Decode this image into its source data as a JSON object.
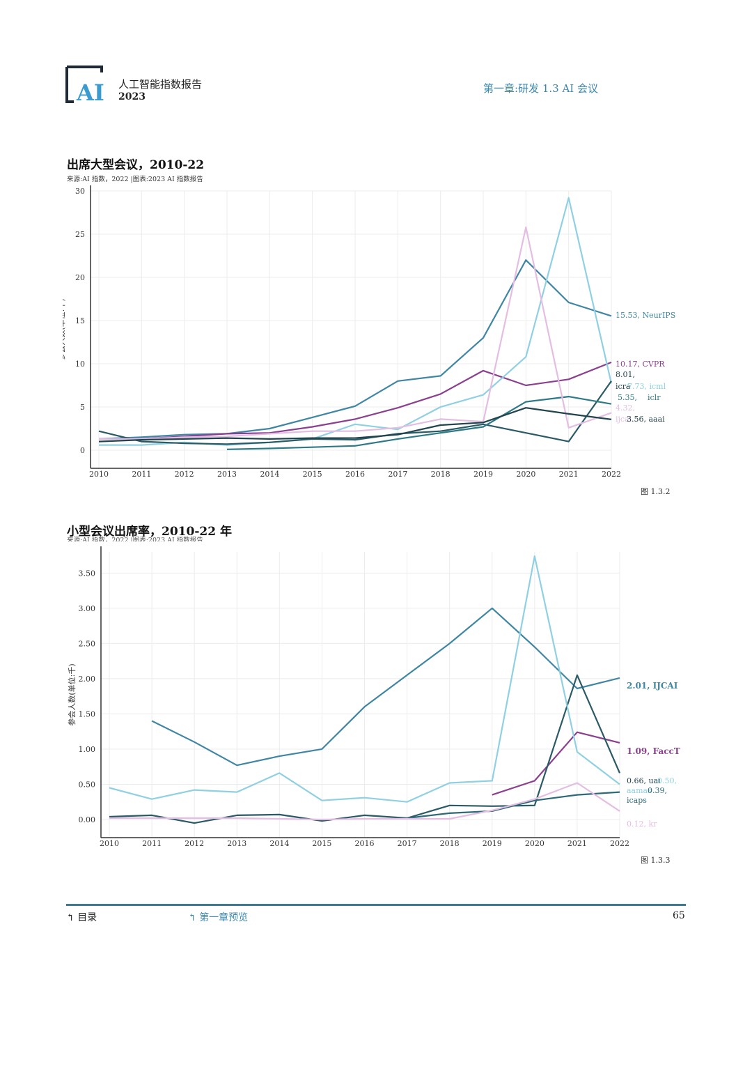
{
  "header": {
    "logo_text": "AI",
    "report_title": "人工智能指数报告",
    "report_year": "2023",
    "chapter": "第一章:研发 1.3 AI 会议"
  },
  "colors": {
    "accent": "#3a86b0",
    "footer_line": "#3b7a94",
    "logo": "#1e2a36",
    "logo_accent": "#3a9bd0"
  },
  "chart_data": [
    {
      "type": "line",
      "title": "出席大型会议，2010-22",
      "source": "来源:AI 指数，2022 |图表:2023 AI 指数报告",
      "ylabel": "参会人数(单位:千)",
      "xlabel": "",
      "x": [
        "2010",
        "2011",
        "2012",
        "2013",
        "2014",
        "2015",
        "2016",
        "2017",
        "2018",
        "2019",
        "2020",
        "2021",
        "2022"
      ],
      "yticks": [
        "0",
        "5",
        "10",
        "15",
        "20",
        "25",
        "30"
      ],
      "ylim": [
        0,
        30
      ],
      "grid": true,
      "figure_label": "图 1.3.2",
      "series": [
        {
          "name": "NeurIPS",
          "label": "15.53, NeurIPS",
          "color": "#3e86a3",
          "width": 2.2,
          "values": [
            1.3,
            1.5,
            1.8,
            1.9,
            2.5,
            3.8,
            5.1,
            8.0,
            8.6,
            13.0,
            22.0,
            17.1,
            15.53
          ]
        },
        {
          "name": "CVPR",
          "label": "10.17, CVPR",
          "color": "#8b3f8f",
          "width": 2.2,
          "values": [
            1.3,
            1.3,
            1.6,
            1.9,
            2.0,
            2.7,
            3.6,
            4.9,
            6.5,
            9.2,
            7.5,
            8.2,
            10.17
          ]
        },
        {
          "name": "icml",
          "label": "7.73, icml",
          "color": "#8fd0e2",
          "width": 2.2,
          "values": [
            0.6,
            0.6,
            0.9,
            0.6,
            0.9,
            1.3,
            3.0,
            2.4,
            5.0,
            6.4,
            10.8,
            29.2,
            7.73
          ]
        },
        {
          "name": "icra",
          "label": "8.01, icra",
          "color": "#2a5a66",
          "width": 2.2,
          "values": [
            2.2,
            1.0,
            0.8,
            0.7,
            0.9,
            1.3,
            1.2,
            1.9,
            2.2,
            3.0,
            2.0,
            1.0,
            8.01
          ]
        },
        {
          "name": "iclr",
          "label": "5.35, iclr",
          "color": "#2d7a86",
          "width": 2.2,
          "values": [
            null,
            null,
            null,
            0.1,
            0.2,
            0.35,
            0.5,
            1.3,
            2.0,
            2.7,
            5.6,
            6.2,
            5.35
          ]
        },
        {
          "name": "ijcai",
          "label": "4.32, ijcai",
          "color": "#e4bde2",
          "width": 2.2,
          "values": [
            1.3,
            1.3,
            1.5,
            1.6,
            1.9,
            2.2,
            2.2,
            2.6,
            3.6,
            3.3,
            25.8,
            2.6,
            4.32
          ]
        },
        {
          "name": "aaai",
          "label": "3.56, aaai",
          "color": "#22444f",
          "width": 2.2,
          "values": [
            1.0,
            1.2,
            1.3,
            1.4,
            1.3,
            1.4,
            1.4,
            1.8,
            2.9,
            3.2,
            4.9,
            4.2,
            3.56
          ]
        }
      ],
      "end_labels": {
        "neurips": "15.53, NeurIPS",
        "cvpr": "10.17, CVPR",
        "icra_a": "8.01,",
        "icra_b": "icra",
        "icml": "7.73, icml",
        "iclr_a": "5.35,",
        "iclr_b": "iclr",
        "ijcai_a": "4.32,",
        "ijcai_b": "ijcai",
        "aaai": "3.56, aaai"
      }
    },
    {
      "type": "line",
      "title": "小型会议出席率，2010-22 年",
      "source": "来源:AI 指数，2022 |图表:2023 AI 指数报告",
      "ylabel": "参会人数(单位:千)",
      "xlabel": "",
      "x": [
        "2010",
        "2011",
        "2012",
        "2013",
        "2014",
        "2015",
        "2016",
        "2017",
        "2018",
        "2019",
        "2020",
        "2021",
        "2022"
      ],
      "yticks": [
        "0.00",
        "0.50",
        "1.00",
        "1.50",
        "2.00",
        "2.50",
        "3.00",
        "3.50"
      ],
      "ylim": [
        0,
        3.8
      ],
      "grid": true,
      "figure_label": "图 1.3.3",
      "series": [
        {
          "name": "IJCAI",
          "label": "2.01, IJCAI",
          "color": "#3e86a3",
          "width": 2.2,
          "values": [
            null,
            1.4,
            1.1,
            0.77,
            0.9,
            1.0,
            1.6,
            2.05,
            2.5,
            3.0,
            2.45,
            1.86,
            2.01
          ]
        },
        {
          "name": "FaccT",
          "label": "1.09, FaccT",
          "color": "#8b3f8f",
          "width": 2.2,
          "values": [
            null,
            null,
            null,
            null,
            null,
            null,
            null,
            null,
            null,
            0.35,
            0.55,
            1.24,
            1.09
          ]
        },
        {
          "name": "uai",
          "label": "0.66, uai",
          "color": "#2a5a66",
          "width": 2.2,
          "values": [
            0.04,
            0.06,
            -0.05,
            0.06,
            0.07,
            -0.02,
            0.06,
            0.02,
            0.2,
            0.19,
            0.2,
            2.05,
            0.66
          ]
        },
        {
          "name": "aamas",
          "label": "0.50, aamas",
          "color": "#8fd0e2",
          "width": 2.2,
          "values": [
            0.45,
            0.29,
            0.42,
            0.39,
            0.66,
            0.27,
            0.31,
            0.25,
            0.52,
            0.55,
            3.74,
            0.96,
            0.5
          ]
        },
        {
          "name": "icaps",
          "label": "0.39, icaps",
          "color": "#2d6a78",
          "width": 2.2,
          "values": [
            null,
            null,
            null,
            null,
            null,
            null,
            null,
            0.02,
            0.09,
            0.12,
            0.27,
            0.35,
            0.39
          ]
        },
        {
          "name": "kr",
          "label": "0.12, kr",
          "color": "#e4bde2",
          "width": 2.2,
          "values": [
            0.02,
            0.02,
            0.02,
            0.02,
            0.01,
            0.0,
            0.01,
            0.01,
            0.01,
            0.13,
            0.29,
            0.52,
            0.12
          ]
        }
      ],
      "end_labels": {
        "ijcai": "2.01, IJCAI",
        "facct": "1.09, FaccT",
        "uai": "0.66, uai",
        "aamas_a": "0.50,",
        "aamas_b": "aamas",
        "icaps_a": "0.39,",
        "icaps_b": "icaps",
        "kr": "0.12, kr"
      }
    }
  ],
  "footer": {
    "toc": "目录",
    "chapter_overview": "第一章预览",
    "page": "65"
  }
}
